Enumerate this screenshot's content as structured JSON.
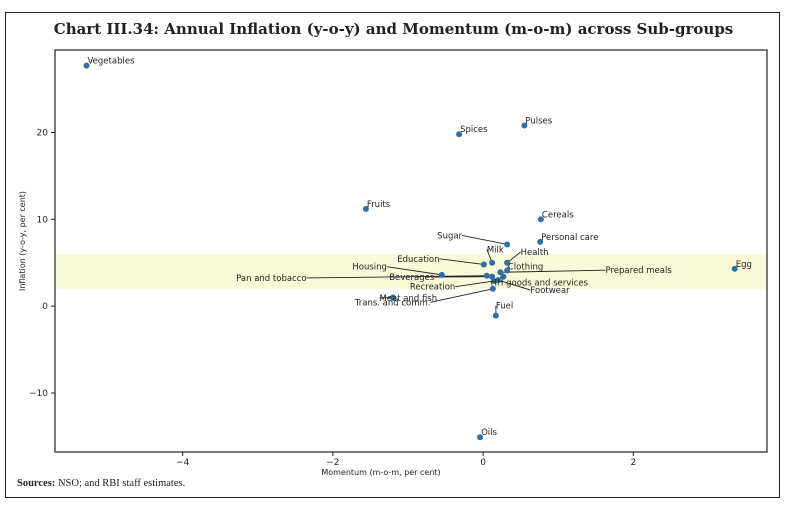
{
  "chart_data": {
    "type": "scatter",
    "title": "Chart III.34: Annual Inflation (y-o-y) and Momentum (m-o-m) across Sub-groups",
    "xlabel": "Momentum (m-o-m, per cent)",
    "ylabel": "Inflation (y-o-y, per cent)",
    "xlim": [
      -5.7,
      3.78
    ],
    "ylim": [
      -16.8,
      29.5
    ],
    "xticks": [
      -4,
      -2,
      0,
      2
    ],
    "xtick_labels": [
      "−4",
      "−2",
      "0",
      "2"
    ],
    "yticks": [
      -10,
      0,
      10,
      20
    ],
    "ytick_labels": [
      "−10",
      "0",
      "10",
      "20"
    ],
    "grid": false,
    "band": {
      "y_from": 2,
      "y_to": 6,
      "color": "#fafad8"
    },
    "point_color": "#2f6fa8",
    "points": [
      {
        "label": "Vegetables",
        "x": -5.28,
        "y": 27.7,
        "lx": -5.28,
        "ly": 27.7,
        "leader": false
      },
      {
        "label": "Pulses",
        "x": 0.55,
        "y": 20.8,
        "lx": 0.55,
        "ly": 20.8,
        "leader": false
      },
      {
        "label": "Spices",
        "x": -0.32,
        "y": 19.8,
        "lx": -0.32,
        "ly": 19.8,
        "leader": false
      },
      {
        "label": "Fruits",
        "x": -1.56,
        "y": 11.2,
        "lx": -1.56,
        "ly": 11.2,
        "leader": false
      },
      {
        "label": "Cereals",
        "x": 0.77,
        "y": 10.0,
        "lx": 0.77,
        "ly": 10.0,
        "leader": false
      },
      {
        "label": "Sugar",
        "x": 0.32,
        "y": 7.1,
        "lx": -0.28,
        "ly": 7.8,
        "leader": true
      },
      {
        "label": "Personal care",
        "x": 0.76,
        "y": 7.4,
        "lx": 0.76,
        "ly": 7.4,
        "leader": false
      },
      {
        "label": "Health",
        "x": 0.32,
        "y": 5.0,
        "lx": 0.5,
        "ly": 5.9,
        "leader": true
      },
      {
        "label": "Milk",
        "x": 0.12,
        "y": 5.0,
        "lx": 0.05,
        "ly": 6.2,
        "leader": true
      },
      {
        "label": "Education",
        "x": 0.01,
        "y": 4.8,
        "lx": -0.58,
        "ly": 5.1,
        "leader": true
      },
      {
        "label": "Clothing",
        "x": 0.32,
        "y": 4.1,
        "lx": 0.33,
        "ly": 4.2,
        "leader": true
      },
      {
        "label": "Prepared meals",
        "x": 0.23,
        "y": 3.9,
        "lx": 1.63,
        "ly": 3.8,
        "leader": true
      },
      {
        "label": "Housing",
        "x": -0.55,
        "y": 3.6,
        "lx": -1.28,
        "ly": 4.2,
        "leader": true
      },
      {
        "label": "Pan and tobacco",
        "x": 0.05,
        "y": 3.5,
        "lx": -2.35,
        "ly": 2.9,
        "leader": true
      },
      {
        "label": "Beverages",
        "x": 0.12,
        "y": 3.4,
        "lx": -0.65,
        "ly": 3.0,
        "leader": true
      },
      {
        "label": "HH goods and services",
        "x": 0.27,
        "y": 3.4,
        "lx": 0.1,
        "ly": 2.4,
        "leader": true
      },
      {
        "label": "Footwear",
        "x": 0.2,
        "y": 3.0,
        "lx": 0.63,
        "ly": 1.5,
        "leader": true
      },
      {
        "label": "Recreation",
        "x": 0.15,
        "y": 2.9,
        "lx": -0.37,
        "ly": 1.9,
        "leader": true
      },
      {
        "label": "Egg",
        "x": 3.35,
        "y": 4.3,
        "lx": 3.35,
        "ly": 4.3,
        "leader": false
      },
      {
        "label": "Trans. and comm.",
        "x": 0.13,
        "y": 2.0,
        "lx": -0.7,
        "ly": 0.1,
        "leader": true
      },
      {
        "label": "Meat and fish",
        "x": -1.2,
        "y": 1.0,
        "lx": -1.38,
        "ly": 0.6,
        "leader": true
      },
      {
        "label": "Fuel",
        "x": 0.17,
        "y": -1.1,
        "lx": 0.17,
        "ly": -0.3,
        "leader": true
      },
      {
        "label": "Oils",
        "x": -0.04,
        "y": -15.1,
        "lx": -0.04,
        "ly": -15.1,
        "leader": false
      }
    ]
  },
  "footer": {
    "source_label": "Sources:",
    "source_text": " NSO; and RBI staff estimates."
  }
}
